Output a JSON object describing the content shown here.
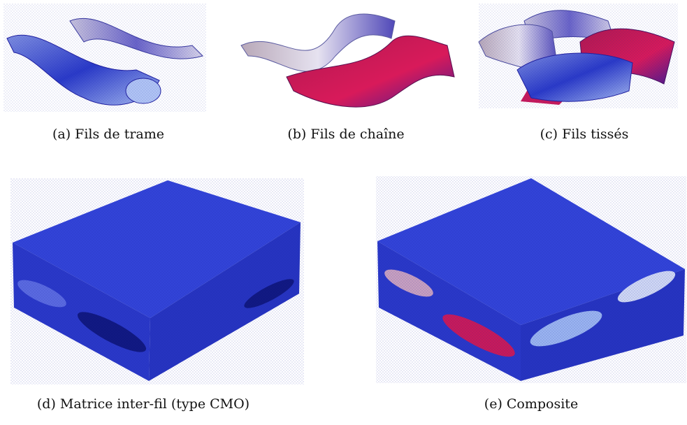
{
  "figures": [
    {
      "label": "(a)",
      "caption": "Fils de trame"
    },
    {
      "label": "(b)",
      "caption": "Fils de chaîne"
    },
    {
      "label": "(c)",
      "caption": "Fils tissés"
    },
    {
      "label": "(d)",
      "caption": "Matrice inter-fil (type CMO)"
    },
    {
      "label": "(e)",
      "caption": "Composite"
    }
  ]
}
